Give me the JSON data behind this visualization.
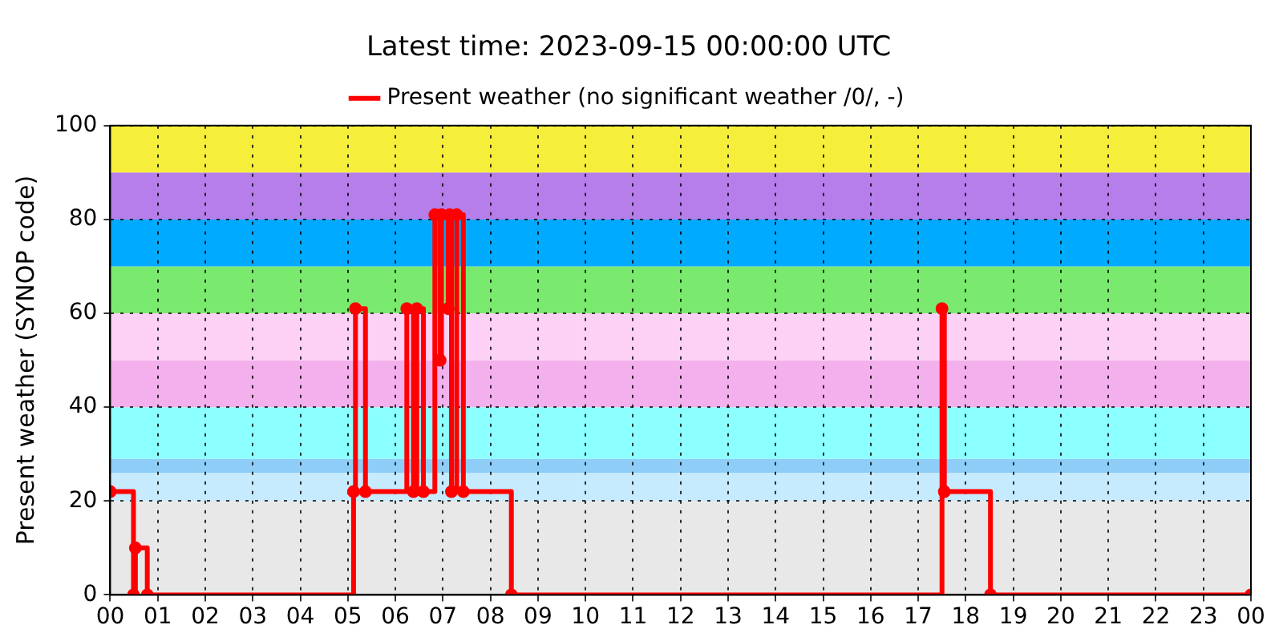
{
  "chart_data": {
    "type": "step",
    "title": "Latest time: 2023-09-15 00:00:00 UTC",
    "ylabel": "Present weather (SYNOP code)",
    "x": [
      0,
      0.49,
      0.53,
      0.78,
      5.12,
      5.16,
      5.37,
      6.24,
      6.38,
      6.45,
      6.59,
      6.83,
      6.94,
      6.97,
      7.11,
      7.14,
      7.18,
      7.29,
      7.43,
      8.44,
      17.5,
      17.55,
      18.52,
      24
    ],
    "series": [
      {
        "name": "Present weather (no significant weather /0/, -)",
        "color": "#ff0000",
        "values": [
          22,
          0,
          10,
          0,
          22,
          61,
          22,
          61,
          22,
          61,
          22,
          81,
          50,
          81,
          61,
          81,
          22,
          81,
          22,
          0,
          61,
          22,
          0,
          0
        ]
      }
    ],
    "xlim": [
      0,
      24
    ],
    "xticks": [
      {
        "value": 0,
        "label": "00"
      },
      {
        "value": 1,
        "label": "01"
      },
      {
        "value": 2,
        "label": "02"
      },
      {
        "value": 3,
        "label": "03"
      },
      {
        "value": 4,
        "label": "04"
      },
      {
        "value": 5,
        "label": "05"
      },
      {
        "value": 6,
        "label": "06"
      },
      {
        "value": 7,
        "label": "07"
      },
      {
        "value": 8,
        "label": "08"
      },
      {
        "value": 9,
        "label": "09"
      },
      {
        "value": 10,
        "label": "10"
      },
      {
        "value": 11,
        "label": "11"
      },
      {
        "value": 12,
        "label": "12"
      },
      {
        "value": 13,
        "label": "13"
      },
      {
        "value": 14,
        "label": "14"
      },
      {
        "value": 15,
        "label": "15"
      },
      {
        "value": 16,
        "label": "16"
      },
      {
        "value": 17,
        "label": "17"
      },
      {
        "value": 18,
        "label": "18"
      },
      {
        "value": 19,
        "label": "19"
      },
      {
        "value": 20,
        "label": "20"
      },
      {
        "value": 21,
        "label": "21"
      },
      {
        "value": 22,
        "label": "22"
      },
      {
        "value": 23,
        "label": "23"
      },
      {
        "value": 24,
        "label": "00"
      }
    ],
    "ylim": [
      0,
      100
    ],
    "yticks": [
      0,
      20,
      40,
      60,
      80,
      100
    ],
    "bands": [
      {
        "axis": "y",
        "from": 0,
        "to": 20,
        "color": "#e8e8e8"
      },
      {
        "axis": "y",
        "from": 20,
        "to": 26,
        "color": "#c6eafe"
      },
      {
        "axis": "y",
        "from": 26,
        "to": 29,
        "color": "#8ecdf8"
      },
      {
        "axis": "y",
        "from": 29,
        "to": 40,
        "color": "#8cffff"
      },
      {
        "axis": "y",
        "from": 40,
        "to": 50,
        "color": "#f4b0ec"
      },
      {
        "axis": "y",
        "from": 50,
        "to": 60,
        "color": "#fdd0f6"
      },
      {
        "axis": "y",
        "from": 60,
        "to": 70,
        "color": "#7aea6e"
      },
      {
        "axis": "y",
        "from": 70,
        "to": 80,
        "color": "#00aaff"
      },
      {
        "axis": "y",
        "from": 80,
        "to": 90,
        "color": "#b57eea"
      },
      {
        "axis": "y",
        "from": 90,
        "to": 100,
        "color": "#f5ef3c"
      }
    ],
    "grid": true,
    "legend": "top",
    "marker": "circle",
    "line_style": "solid"
  }
}
